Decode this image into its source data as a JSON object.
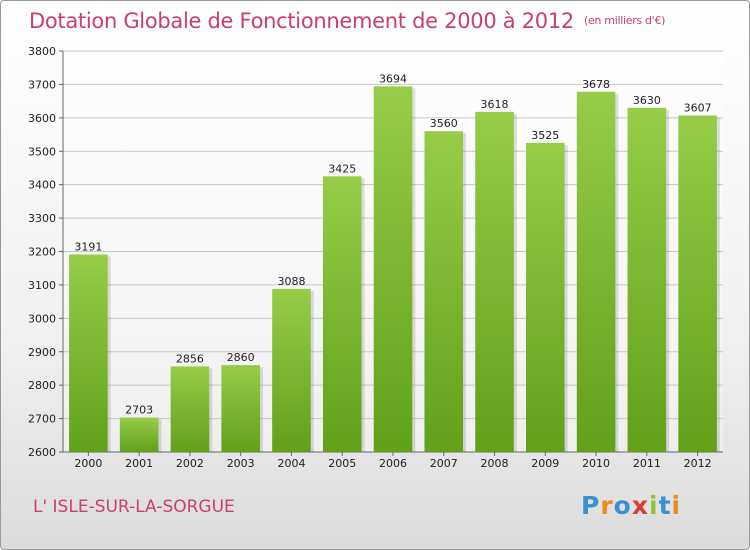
{
  "header": {
    "title": "Dotation Globale de Fonctionnement de 2000 à 2012",
    "unit": "(en milliers d'€)"
  },
  "footer": {
    "city": "L' ISLE-SUR-LA-SORGUE",
    "logo_letters": [
      "P",
      "r",
      "o",
      "x",
      "i",
      "t",
      "i"
    ],
    "logo_colors": [
      "#3a8fd6",
      "#f08a1c",
      "#3a8fd6",
      "#d93a3a",
      "#8fc43c",
      "#3a8fd6",
      "#f08a1c"
    ]
  },
  "chart_data": {
    "type": "bar",
    "categories": [
      "2000",
      "2001",
      "2002",
      "2003",
      "2004",
      "2005",
      "2006",
      "2007",
      "2008",
      "2009",
      "2010",
      "2011",
      "2012"
    ],
    "values": [
      3191,
      2703,
      2856,
      2860,
      3088,
      3425,
      3694,
      3560,
      3618,
      3525,
      3678,
      3630,
      3607
    ],
    "ylim": [
      2600,
      3800
    ],
    "yticks": [
      2600,
      2700,
      2800,
      2900,
      3000,
      3100,
      3200,
      3300,
      3400,
      3500,
      3600,
      3700,
      3800
    ],
    "grid": true,
    "bar_color_top": "#96cc48",
    "bar_color_bottom": "#62a01a"
  }
}
